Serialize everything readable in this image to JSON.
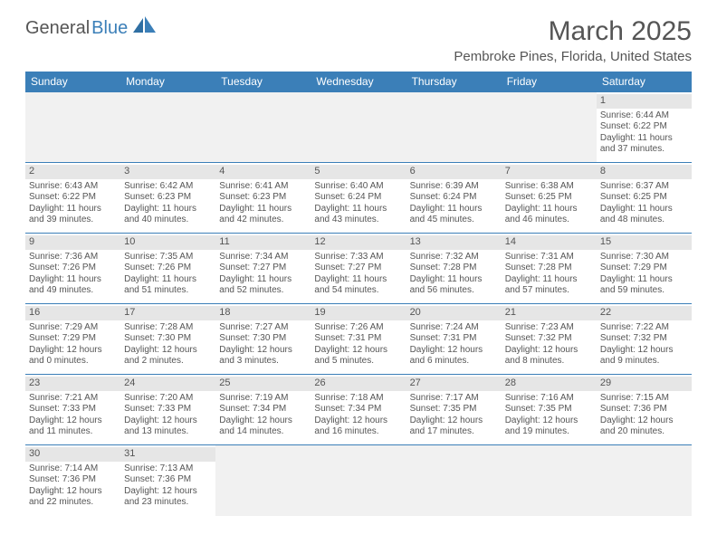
{
  "logo": {
    "text1": "General",
    "text2": "Blue"
  },
  "title": "March 2025",
  "location": "Pembroke Pines, Florida, United States",
  "colors": {
    "header_bg": "#3b7fb8",
    "header_text": "#ffffff",
    "border": "#3b7fb8",
    "daynum_bg": "#e6e6e6",
    "empty_bg": "#f1f1f1",
    "text": "#555555"
  },
  "days_of_week": [
    "Sunday",
    "Monday",
    "Tuesday",
    "Wednesday",
    "Thursday",
    "Friday",
    "Saturday"
  ],
  "weeks": [
    [
      null,
      null,
      null,
      null,
      null,
      null,
      {
        "n": "1",
        "sr": "Sunrise: 6:44 AM",
        "ss": "Sunset: 6:22 PM",
        "dl": "Daylight: 11 hours and 37 minutes."
      }
    ],
    [
      {
        "n": "2",
        "sr": "Sunrise: 6:43 AM",
        "ss": "Sunset: 6:22 PM",
        "dl": "Daylight: 11 hours and 39 minutes."
      },
      {
        "n": "3",
        "sr": "Sunrise: 6:42 AM",
        "ss": "Sunset: 6:23 PM",
        "dl": "Daylight: 11 hours and 40 minutes."
      },
      {
        "n": "4",
        "sr": "Sunrise: 6:41 AM",
        "ss": "Sunset: 6:23 PM",
        "dl": "Daylight: 11 hours and 42 minutes."
      },
      {
        "n": "5",
        "sr": "Sunrise: 6:40 AM",
        "ss": "Sunset: 6:24 PM",
        "dl": "Daylight: 11 hours and 43 minutes."
      },
      {
        "n": "6",
        "sr": "Sunrise: 6:39 AM",
        "ss": "Sunset: 6:24 PM",
        "dl": "Daylight: 11 hours and 45 minutes."
      },
      {
        "n": "7",
        "sr": "Sunrise: 6:38 AM",
        "ss": "Sunset: 6:25 PM",
        "dl": "Daylight: 11 hours and 46 minutes."
      },
      {
        "n": "8",
        "sr": "Sunrise: 6:37 AM",
        "ss": "Sunset: 6:25 PM",
        "dl": "Daylight: 11 hours and 48 minutes."
      }
    ],
    [
      {
        "n": "9",
        "sr": "Sunrise: 7:36 AM",
        "ss": "Sunset: 7:26 PM",
        "dl": "Daylight: 11 hours and 49 minutes."
      },
      {
        "n": "10",
        "sr": "Sunrise: 7:35 AM",
        "ss": "Sunset: 7:26 PM",
        "dl": "Daylight: 11 hours and 51 minutes."
      },
      {
        "n": "11",
        "sr": "Sunrise: 7:34 AM",
        "ss": "Sunset: 7:27 PM",
        "dl": "Daylight: 11 hours and 52 minutes."
      },
      {
        "n": "12",
        "sr": "Sunrise: 7:33 AM",
        "ss": "Sunset: 7:27 PM",
        "dl": "Daylight: 11 hours and 54 minutes."
      },
      {
        "n": "13",
        "sr": "Sunrise: 7:32 AM",
        "ss": "Sunset: 7:28 PM",
        "dl": "Daylight: 11 hours and 56 minutes."
      },
      {
        "n": "14",
        "sr": "Sunrise: 7:31 AM",
        "ss": "Sunset: 7:28 PM",
        "dl": "Daylight: 11 hours and 57 minutes."
      },
      {
        "n": "15",
        "sr": "Sunrise: 7:30 AM",
        "ss": "Sunset: 7:29 PM",
        "dl": "Daylight: 11 hours and 59 minutes."
      }
    ],
    [
      {
        "n": "16",
        "sr": "Sunrise: 7:29 AM",
        "ss": "Sunset: 7:29 PM",
        "dl": "Daylight: 12 hours and 0 minutes."
      },
      {
        "n": "17",
        "sr": "Sunrise: 7:28 AM",
        "ss": "Sunset: 7:30 PM",
        "dl": "Daylight: 12 hours and 2 minutes."
      },
      {
        "n": "18",
        "sr": "Sunrise: 7:27 AM",
        "ss": "Sunset: 7:30 PM",
        "dl": "Daylight: 12 hours and 3 minutes."
      },
      {
        "n": "19",
        "sr": "Sunrise: 7:26 AM",
        "ss": "Sunset: 7:31 PM",
        "dl": "Daylight: 12 hours and 5 minutes."
      },
      {
        "n": "20",
        "sr": "Sunrise: 7:24 AM",
        "ss": "Sunset: 7:31 PM",
        "dl": "Daylight: 12 hours and 6 minutes."
      },
      {
        "n": "21",
        "sr": "Sunrise: 7:23 AM",
        "ss": "Sunset: 7:32 PM",
        "dl": "Daylight: 12 hours and 8 minutes."
      },
      {
        "n": "22",
        "sr": "Sunrise: 7:22 AM",
        "ss": "Sunset: 7:32 PM",
        "dl": "Daylight: 12 hours and 9 minutes."
      }
    ],
    [
      {
        "n": "23",
        "sr": "Sunrise: 7:21 AM",
        "ss": "Sunset: 7:33 PM",
        "dl": "Daylight: 12 hours and 11 minutes."
      },
      {
        "n": "24",
        "sr": "Sunrise: 7:20 AM",
        "ss": "Sunset: 7:33 PM",
        "dl": "Daylight: 12 hours and 13 minutes."
      },
      {
        "n": "25",
        "sr": "Sunrise: 7:19 AM",
        "ss": "Sunset: 7:34 PM",
        "dl": "Daylight: 12 hours and 14 minutes."
      },
      {
        "n": "26",
        "sr": "Sunrise: 7:18 AM",
        "ss": "Sunset: 7:34 PM",
        "dl": "Daylight: 12 hours and 16 minutes."
      },
      {
        "n": "27",
        "sr": "Sunrise: 7:17 AM",
        "ss": "Sunset: 7:35 PM",
        "dl": "Daylight: 12 hours and 17 minutes."
      },
      {
        "n": "28",
        "sr": "Sunrise: 7:16 AM",
        "ss": "Sunset: 7:35 PM",
        "dl": "Daylight: 12 hours and 19 minutes."
      },
      {
        "n": "29",
        "sr": "Sunrise: 7:15 AM",
        "ss": "Sunset: 7:36 PM",
        "dl": "Daylight: 12 hours and 20 minutes."
      }
    ],
    [
      {
        "n": "30",
        "sr": "Sunrise: 7:14 AM",
        "ss": "Sunset: 7:36 PM",
        "dl": "Daylight: 12 hours and 22 minutes."
      },
      {
        "n": "31",
        "sr": "Sunrise: 7:13 AM",
        "ss": "Sunset: 7:36 PM",
        "dl": "Daylight: 12 hours and 23 minutes."
      },
      null,
      null,
      null,
      null,
      null
    ]
  ]
}
